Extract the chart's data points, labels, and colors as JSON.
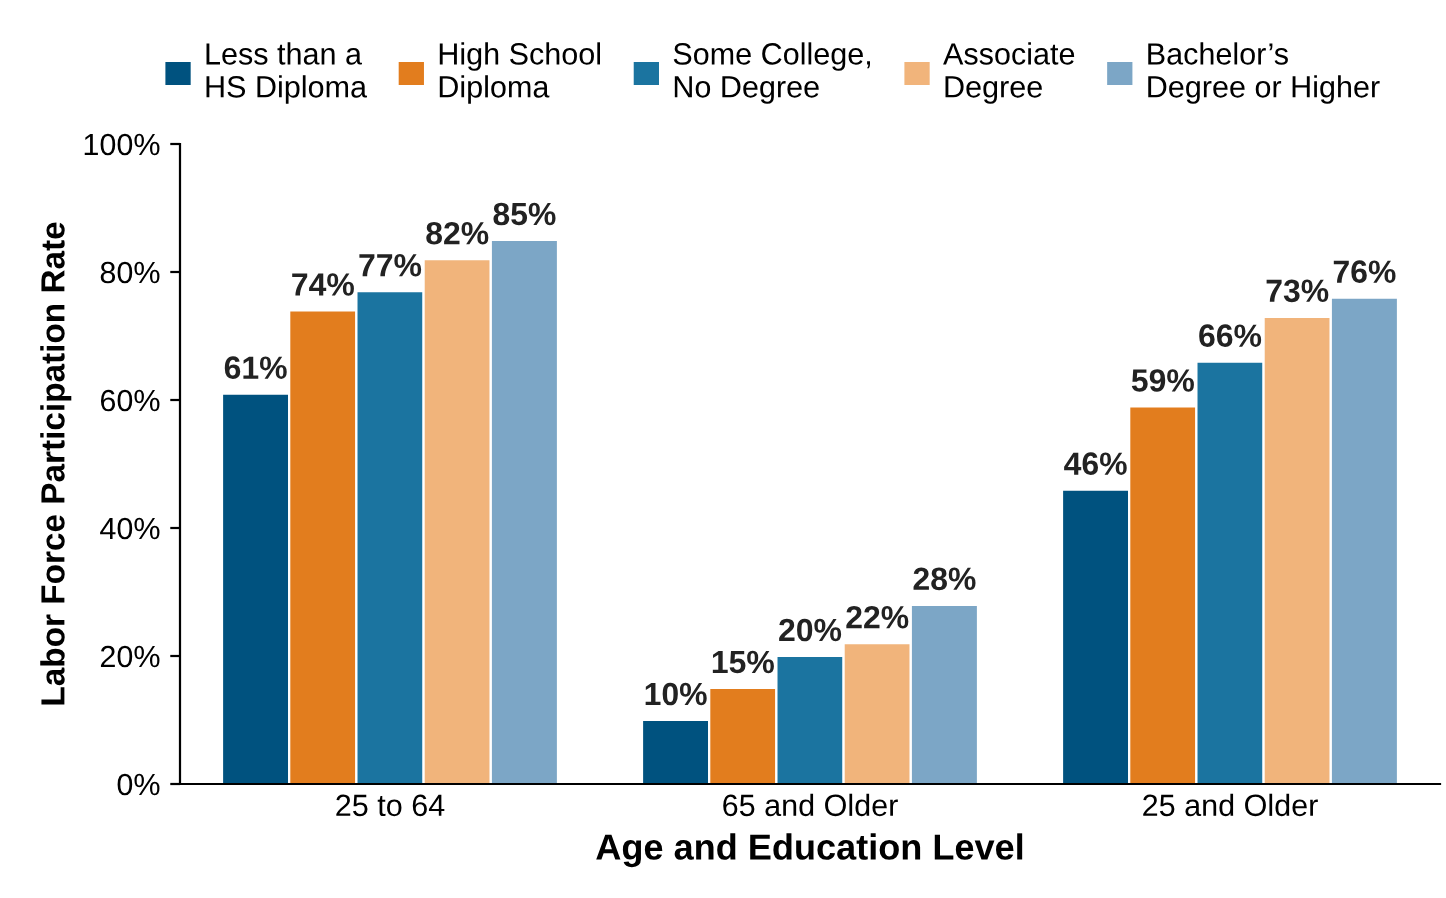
{
  "chart_data": {
    "type": "bar",
    "xlabel": "Age and Education Level",
    "ylabel": "Labor Force Participation Rate",
    "categories": [
      "25 to 64",
      "65 and Older",
      "25 and Older"
    ],
    "ylim": [
      0,
      100
    ],
    "yticks": [
      {
        "value": 0,
        "label": "0%"
      },
      {
        "value": 20,
        "label": "20%"
      },
      {
        "value": 40,
        "label": "40%"
      },
      {
        "value": 60,
        "label": "60%"
      },
      {
        "value": 80,
        "label": "80%"
      },
      {
        "value": 100,
        "label": "100%"
      }
    ],
    "legend": "top",
    "grid": false,
    "series": [
      {
        "name": "Less than a\nHS Diploma",
        "color": "#00527f",
        "values": [
          61,
          10,
          46
        ],
        "value_labels": [
          "61%",
          "10%",
          "46%"
        ]
      },
      {
        "name": "High School\nDiploma",
        "color": "#e27d1e",
        "values": [
          74,
          15,
          59
        ],
        "value_labels": [
          "74%",
          "15%",
          "59%"
        ]
      },
      {
        "name": "Some College,\nNo Degree",
        "color": "#1b74a0",
        "values": [
          77,
          20,
          66
        ],
        "value_labels": [
          "77%",
          "20%",
          "66%"
        ]
      },
      {
        "name": "Associate\nDegree",
        "color": "#f1b47b",
        "values": [
          82,
          22,
          73
        ],
        "value_labels": [
          "82%",
          "22%",
          "73%"
        ]
      },
      {
        "name": "Bachelor’s\nDegree or Higher",
        "color": "#7ca6c6",
        "values": [
          85,
          28,
          76
        ],
        "value_labels": [
          "85%",
          "28%",
          "76%"
        ]
      }
    ]
  }
}
